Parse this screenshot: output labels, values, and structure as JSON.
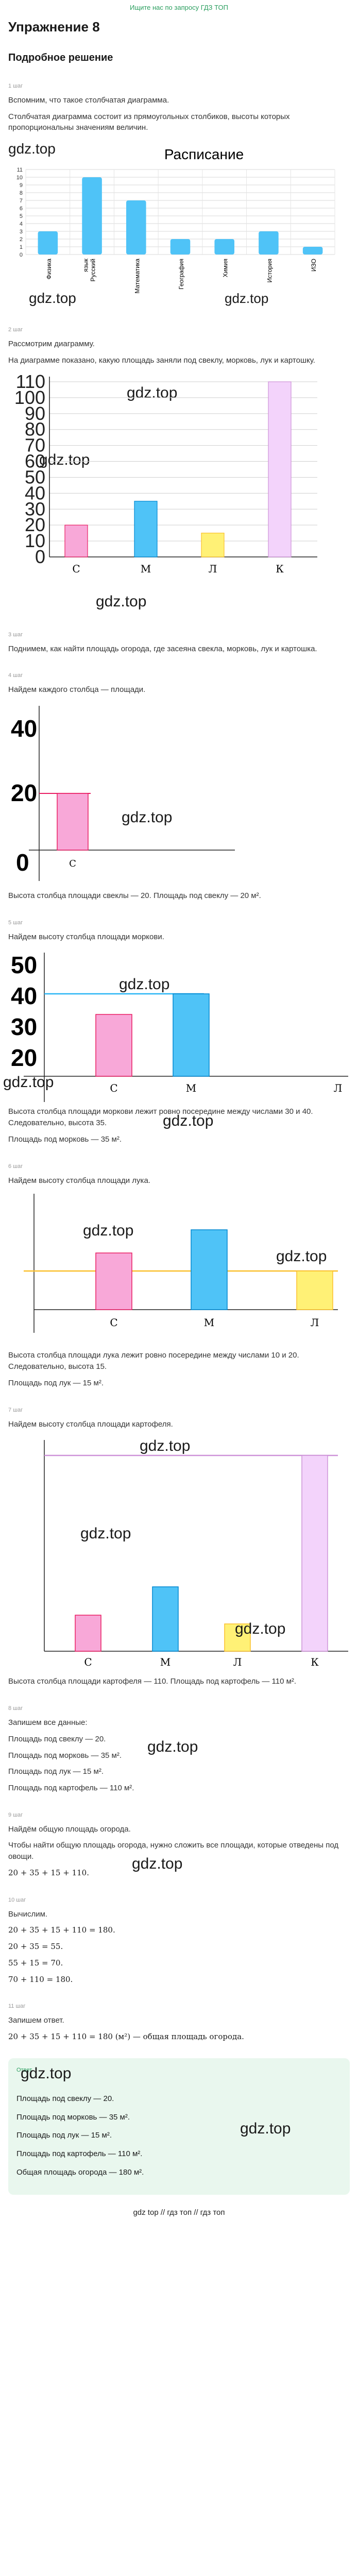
{
  "header": {
    "top_link": "Ищите нас по запросу ГДЗ ТОП"
  },
  "exercise_title": "Упражнение 8",
  "section_title": "Подробное решение",
  "watermark": "gdz.top",
  "steps": [
    {
      "label": "1 шаг",
      "lines": [
        "Вспомним, что такое столбчатая диаграмма.",
        "Столбчатая диаграмма состоит из прямоугольных столбиков, высоты которых пропорциональны значениям величин."
      ],
      "chart_title": "Расписание"
    },
    {
      "label": "2 шаг",
      "lines": [
        "Рассмотрим диаграмму.",
        "На диаграмме показано, какую площадь заняли под свеклу, морковь, лук и картошку."
      ]
    },
    {
      "label": "3 шаг",
      "lines": [
        "Поднимем, как найти площадь огорода, где засеяна свекла, морковь, лук и картошка."
      ]
    },
    {
      "label": "4 шаг",
      "lines": [
        "Найдем каждого столбца — площади."
      ],
      "result": "Высота столбца площади свеклы — 20. Площадь под свеклу — 20 м²."
    },
    {
      "label": "5 шаг",
      "lines": [
        "Найдем высоту столбца площади моркови."
      ],
      "result1": "Высота столбца площади моркови лежит ровно посередине между числами 30 и 40. Следовательно, высота 35.",
      "result2": "Площадь под морковь — 35 м²."
    },
    {
      "label": "6 шаг",
      "lines": [
        "Найдем высоту столбца площади лука."
      ],
      "result1": "Высота столбца площади лука лежит ровно посередине между числами 10 и 20. Следовательно, высота 15.",
      "result2": "Площадь под лук — 15 м²."
    },
    {
      "label": "7 шаг",
      "lines": [
        "Найдем высоту столбца площади картофеля."
      ],
      "result": "Высота столбца площади картофеля — 110. Площадь под картофель — 110 м²."
    },
    {
      "label": "8 шаг",
      "lines": [
        "Запишем все данные:",
        "Площадь под свеклу — 20.",
        "Площадь под морковь — 35 м².",
        "Площадь под лук — 15 м².",
        "Площадь под картофель — 110 м²."
      ]
    },
    {
      "label": "9 шаг",
      "lines": [
        "Найдём общую площадь огорода.",
        "Чтобы найти общую площадь огорода, нужно сложить все площади, которые отведены под овощи."
      ],
      "formula": "20 + 35 + 15 + 110."
    },
    {
      "label": "10 шаг",
      "lines": [
        "Вычислим."
      ],
      "formulas": [
        "20 + 35 + 15 + 110 = 180.",
        "20 + 35 = 55.",
        "55 + 15 = 70.",
        "70 + 110 = 180."
      ]
    },
    {
      "label": "11 шаг",
      "lines": [
        "Запишем ответ."
      ],
      "formula": "20 + 35 + 15 + 110 = 180 (м²) — общая площадь огорода."
    }
  ],
  "answer": {
    "label": "Ответ",
    "lines": [
      "Площадь под свеклу — 20.",
      "Площадь под морковь — 35 м².",
      "Площадь под лук — 15 м².",
      "Площадь под картофель — 110 м².",
      "Общая площадь огорода — 180 м²."
    ]
  },
  "footer": {
    "text": "gdz top // гдз топ // гдз топ"
  },
  "colors": {
    "blue": "#4fc3f7",
    "pink": "#f8a8d8",
    "yellow": "#fff176",
    "lilac": "#f3d3fb",
    "green": "#2a9e5e"
  },
  "chart_data": [
    {
      "type": "bar",
      "title": "Расписание",
      "categories": [
        "Физика",
        "Русский язык",
        "Математика",
        "География",
        "Химия",
        "История",
        "ИЗО"
      ],
      "values": [
        3,
        10,
        7,
        2,
        2,
        3,
        1
      ],
      "ylim": [
        0,
        11
      ],
      "yticks": [
        "0",
        "1",
        "2",
        "3",
        "4",
        "5",
        "6",
        "7",
        "8",
        "9",
        "10",
        "11"
      ],
      "grid": true
    },
    {
      "type": "bar",
      "categories": [
        "С",
        "М",
        "Л",
        "К"
      ],
      "values": [
        20,
        35,
        15,
        110
      ],
      "ylim": [
        0,
        110
      ],
      "yticks": [
        "0",
        "10",
        "20",
        "30",
        "40",
        "50",
        "60",
        "70",
        "80",
        "90",
        "100",
        "110"
      ],
      "grid": true
    }
  ],
  "step_figs": {
    "fig4": {
      "yticks": [
        "0",
        "20",
        "40"
      ],
      "category": "С"
    },
    "fig5": {
      "yticks": [
        "20",
        "30",
        "40",
        "50"
      ],
      "categories": [
        "С",
        "М",
        "Л"
      ]
    },
    "fig6": {
      "categories": [
        "С",
        "М",
        "Л"
      ]
    },
    "fig7": {
      "categories": [
        "С",
        "М",
        "Л",
        "К"
      ]
    }
  }
}
